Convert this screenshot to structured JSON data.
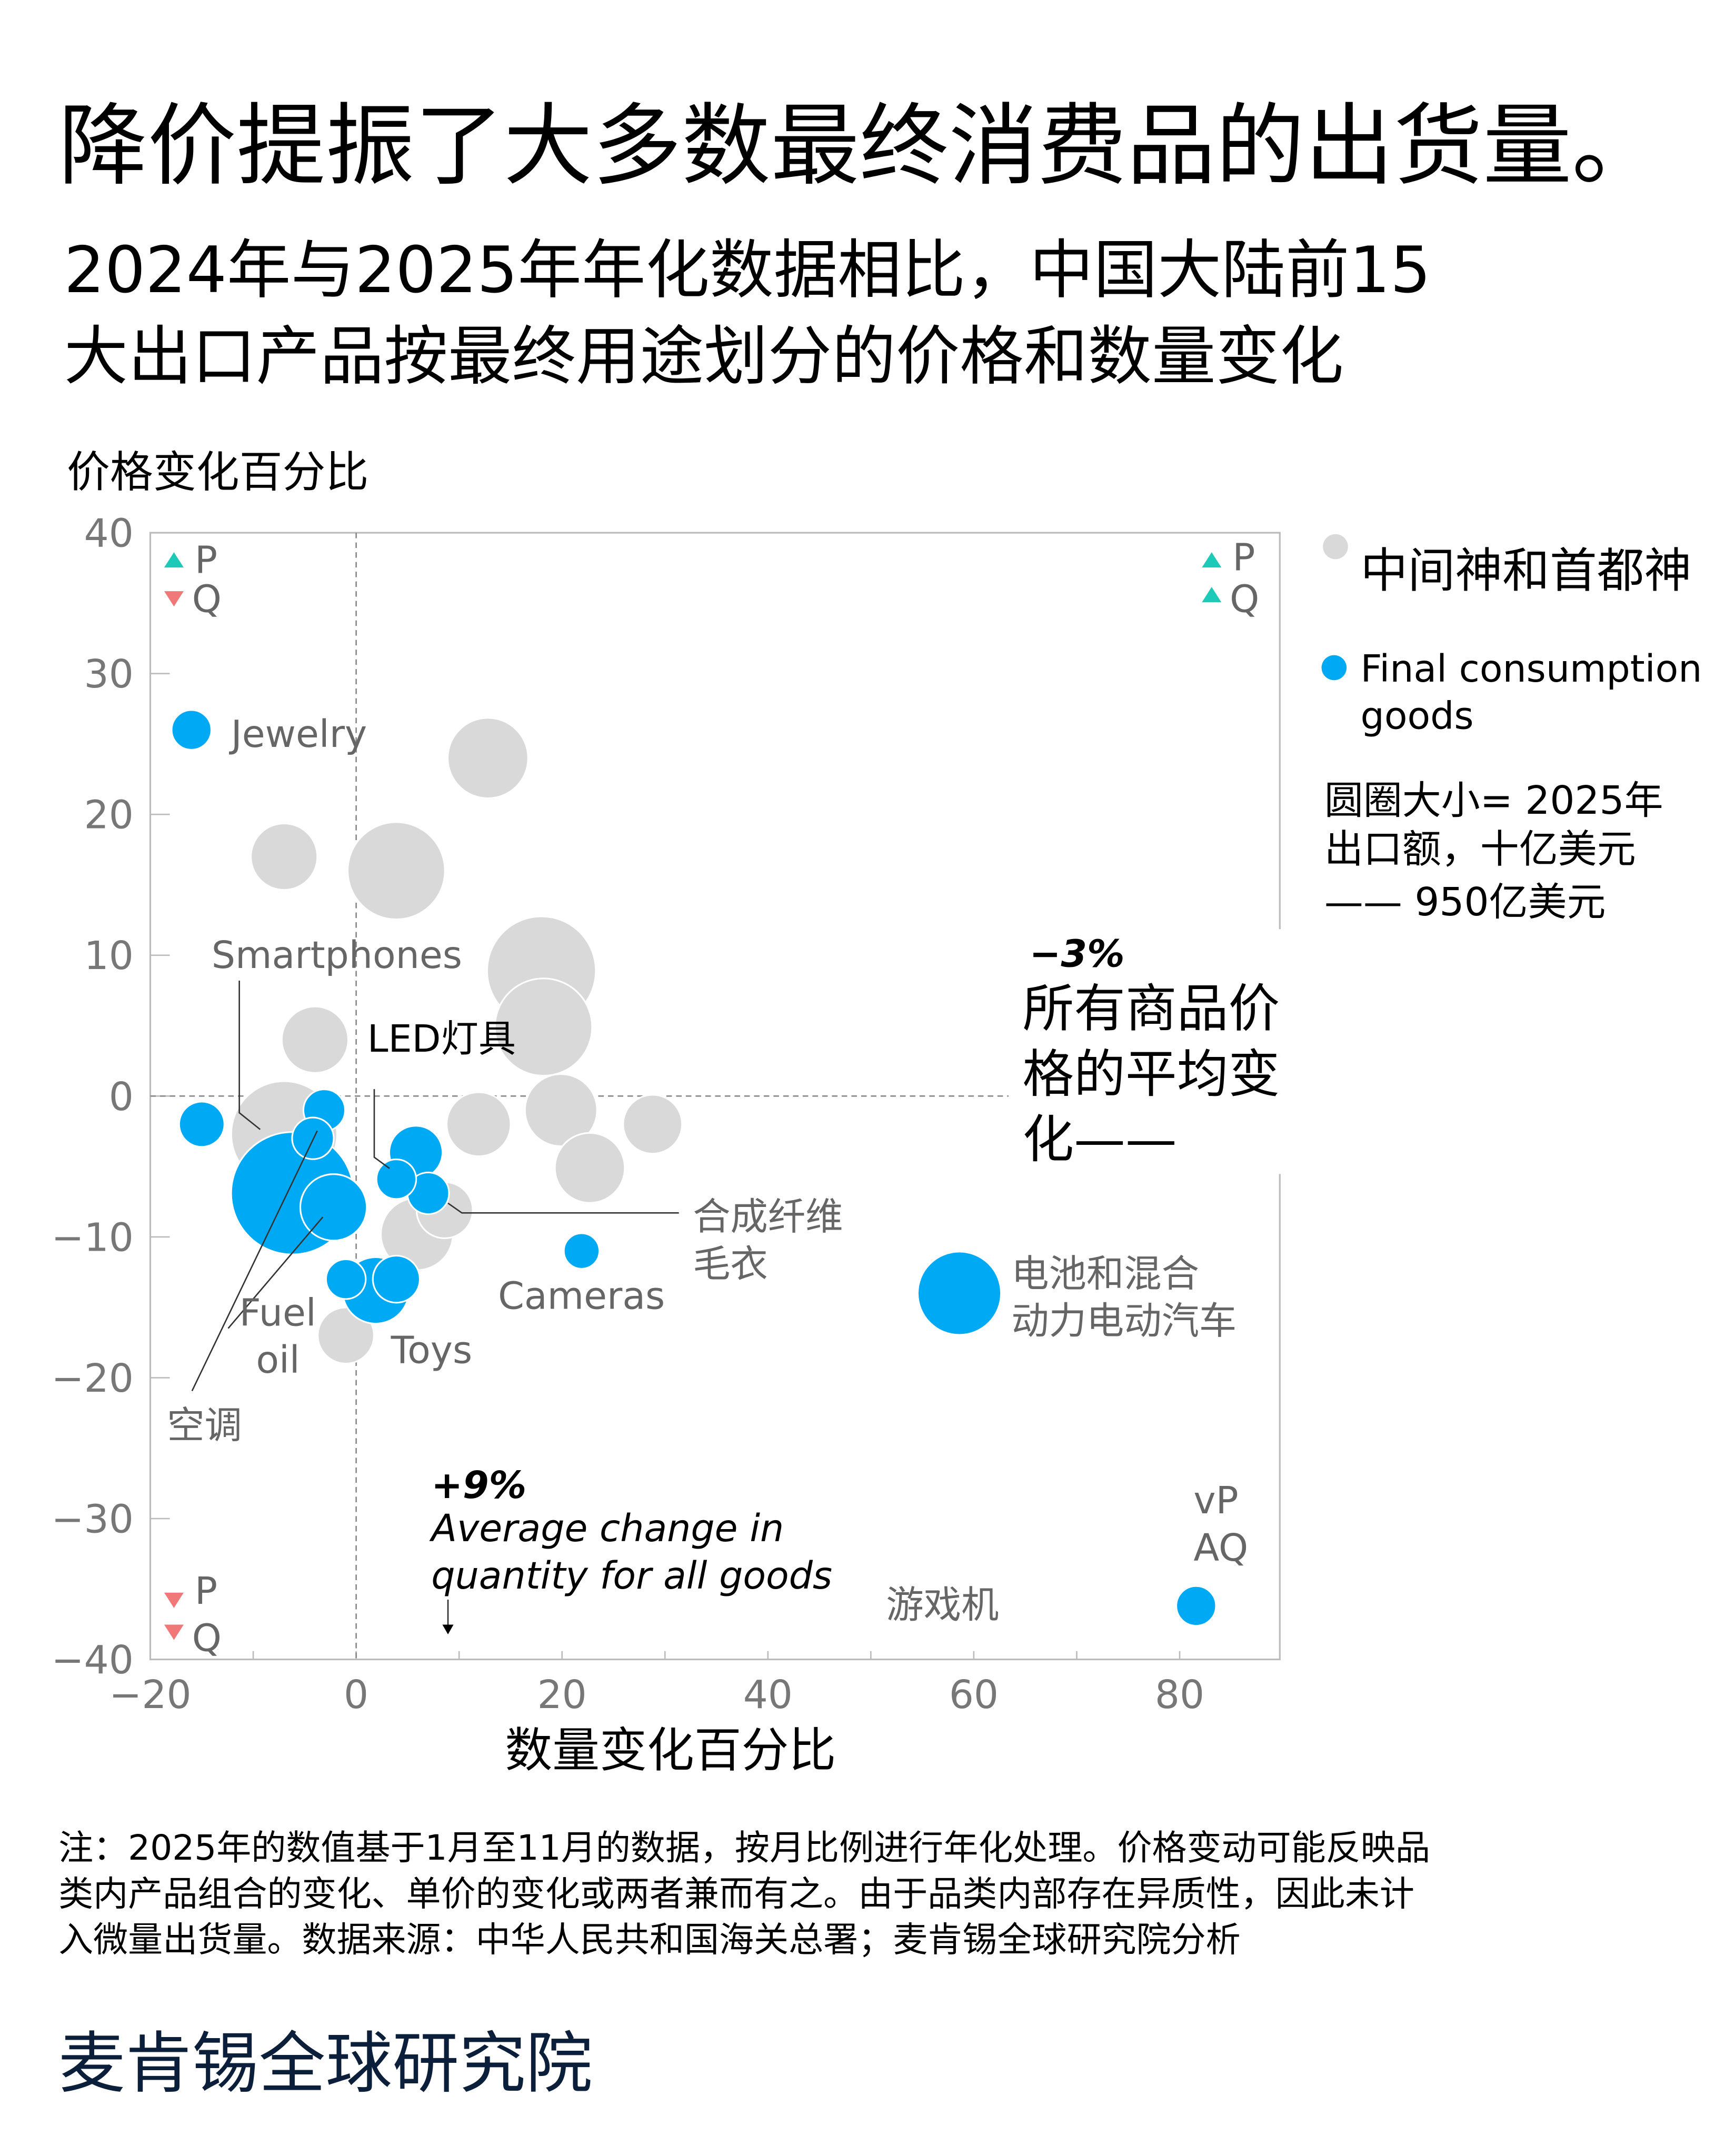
{
  "title": "降价提振了大多数最终消费品的出货量。",
  "subtitle": [
    "2024年与2025年年化数据相比，中国大陆前15",
    "大出口产品按最终用途划分的价格和数量变化"
  ],
  "chart_data": {
    "type": "scatter",
    "ylabel": "价格变化百分比",
    "xlabel": "数量变化百分比",
    "xlim": [
      -20,
      90
    ],
    "ylim": [
      -40,
      40
    ],
    "x_ticks": [
      "−20",
      "0",
      "20",
      "40",
      "60",
      "80"
    ],
    "x_tick_values": [
      -20,
      0,
      20,
      40,
      60,
      80
    ],
    "y_ticks": [
      "40",
      "30",
      "20",
      "10",
      "0",
      "−10",
      "−20",
      "−30",
      "−40"
    ],
    "y_tick_values": [
      40,
      30,
      20,
      10,
      0,
      -10,
      -20,
      -30,
      -40
    ],
    "colors": {
      "intermediate": "#d9d9d9",
      "final": "#00a9f4",
      "up": "#1dc9b7",
      "down": "#f07878"
    },
    "series": [
      {
        "name": "中间神和首都神",
        "key": "intermediate",
        "points": [
          {
            "x": 12.8,
            "y": 24,
            "size": 41
          },
          {
            "x": -7,
            "y": 17,
            "size": 28
          },
          {
            "x": 3.9,
            "y": 16,
            "size": 60
          },
          {
            "x": 18,
            "y": 8.9,
            "size": 75
          },
          {
            "x": 18.2,
            "y": 4.9,
            "size": 60
          },
          {
            "x": -4,
            "y": 4,
            "size": 28
          },
          {
            "x": 11.9,
            "y": -2,
            "size": 26
          },
          {
            "x": 19.9,
            "y": -1,
            "size": 33
          },
          {
            "x": 28.8,
            "y": -2,
            "size": 22
          },
          {
            "x": 22.7,
            "y": -5.1,
            "size": 31
          },
          {
            "x": -7,
            "y": -2.7,
            "size": 71
          },
          {
            "x": 5.9,
            "y": -9.8,
            "size": 33
          },
          {
            "x": 8.6,
            "y": -8.1,
            "size": 20
          },
          {
            "x": -1,
            "y": -17,
            "size": 20
          }
        ]
      },
      {
        "name": "Final consumption goods",
        "key": "final",
        "points": [
          {
            "x": -16,
            "y": 26,
            "size": 10,
            "label": "Jewelry"
          },
          {
            "x": -15,
            "y": -2,
            "size": 13
          },
          {
            "x": -6.2,
            "y": -6.9,
            "size": 95,
            "label": "Smartphones"
          },
          {
            "x": -3.1,
            "y": -1,
            "size": 11
          },
          {
            "x": -4.2,
            "y": -3,
            "size": 11,
            "label": "空调"
          },
          {
            "x": -2.2,
            "y": -7.9,
            "size": 28,
            "label": "Fuel oil"
          },
          {
            "x": 5.8,
            "y": -4,
            "size": 18
          },
          {
            "x": 3.9,
            "y": -5.9,
            "size": 10,
            "label": "LED灯具"
          },
          {
            "x": 7,
            "y": -6.9,
            "size": 11,
            "label": "合成纤维毛衣"
          },
          {
            "x": 1.9,
            "y": -13.8,
            "size": 28,
            "label": "Toys"
          },
          {
            "x": -1,
            "y": -13,
            "size": 10
          },
          {
            "x": 3.9,
            "y": -13,
            "size": 14
          },
          {
            "x": 21.9,
            "y": -11,
            "size": 8,
            "label": "Cameras"
          },
          {
            "x": 58.6,
            "y": -14,
            "size": 44,
            "label": "电池和混合动力电动汽车"
          },
          {
            "x": 81.6,
            "y": -36.2,
            "size": 10,
            "label": "游戏机"
          }
        ]
      }
    ],
    "reference_lines": {
      "avg_price": -3,
      "avg_quantity": 9
    },
    "annotations": {
      "price_value": "−3%",
      "price_text": [
        "所有商品价",
        "格的平均变",
        "化——"
      ],
      "qty_value": "+9%",
      "qty_text": [
        "Average change in",
        "quantity for all goods"
      ]
    },
    "labels": {
      "jewelry": "Jewelry",
      "smartphones": "Smartphones",
      "led": "LED灯具",
      "fiber": [
        "合成纤维",
        "毛衣"
      ],
      "cameras": "Cameras",
      "fuel": [
        "Fuel",
        "oil"
      ],
      "toys": "Toys",
      "ac": "空调",
      "ev": [
        "电池和混合",
        "动力电动汽车"
      ],
      "console": "游戏机"
    },
    "quadrants": {
      "tl": [
        "P",
        "Q"
      ],
      "tr": [
        "P",
        "Q"
      ],
      "bl": [
        "P",
        "Q"
      ],
      "br": [
        "vP",
        "AQ"
      ]
    },
    "legend": {
      "intermediate": "中间神和首都神",
      "final": [
        "Final consumption",
        "goods"
      ],
      "size": [
        "圆圈大小= 2025年",
        "出口额，十亿美元",
        "—— 950亿美元"
      ]
    }
  },
  "note": [
    "注：2025年的数值基于1月至11月的数据，按月比例进行年化处理。价格变动可能反映品",
    "类内产品组合的变化、单价的变化或两者兼而有之。由于品类内部存在异质性，因此未计",
    "入微量出货量。数据来源：中华人民共和国海关总署；麦肯锡全球研究院分析"
  ],
  "brand": "麦肯锡全球研究院"
}
